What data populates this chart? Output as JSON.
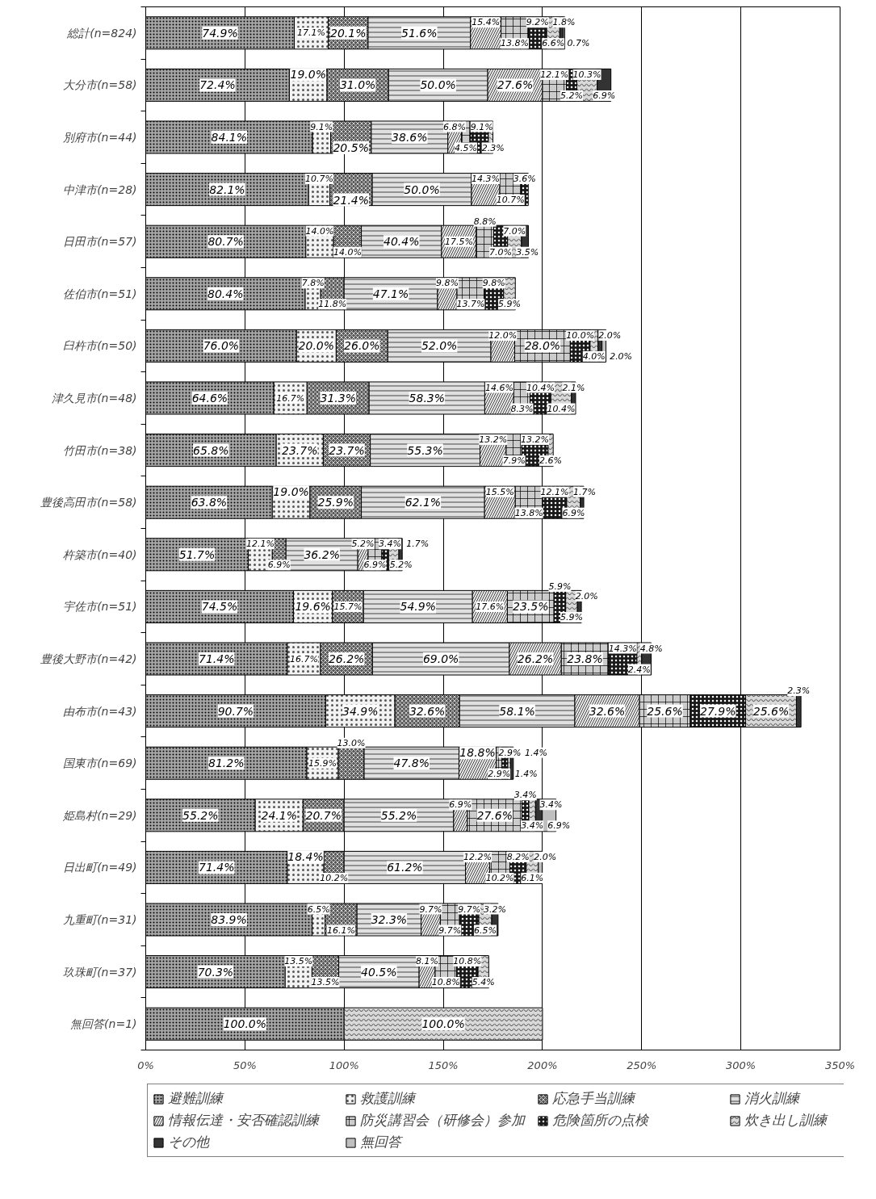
{
  "chart_data": {
    "type": "bar",
    "orientation": "horizontal",
    "stacked": true,
    "categories": [
      "総計(n=824)",
      "大分市(n=58)",
      "別府市(n=44)",
      "中津市(n=28)",
      "日田市(n=57)",
      "佐伯市(n=51)",
      "臼杵市(n=50)",
      "津久見市(n=48)",
      "竹田市(n=38)",
      "豊後高田市(n=58)",
      "杵築市(n=40)",
      "宇佐市(n=51)",
      "豊後大野市(n=42)",
      "由布市(n=43)",
      "国東市(n=69)",
      "姫島村(n=29)",
      "日出町(n=49)",
      "九重町(n=31)",
      "玖珠町(n=37)",
      "無回答(n=1)"
    ],
    "xlim": [
      0,
      350
    ],
    "xticks": [
      {
        "value": 0,
        "label": "0%"
      },
      {
        "value": 50,
        "label": "50%"
      },
      {
        "value": 100,
        "label": "100%"
      },
      {
        "value": 150,
        "label": "150%"
      },
      {
        "value": 200,
        "label": "200%"
      },
      {
        "value": 250,
        "label": "250%"
      },
      {
        "value": 300,
        "label": "300%"
      },
      {
        "value": 350,
        "label": "350%"
      }
    ],
    "grid": "x",
    "legend": "bottom",
    "series": [
      {
        "name": "避難訓練",
        "color": "#a6a6a6",
        "values": [
          74.9,
          72.4,
          84.1,
          82.1,
          80.7,
          80.4,
          76.0,
          64.6,
          65.8,
          63.8,
          51.7,
          74.5,
          71.4,
          90.7,
          81.2,
          55.2,
          71.4,
          83.9,
          70.3,
          100.0
        ],
        "value_labels": [
          "74.9%",
          "72.4%",
          "84.1%",
          "82.1%",
          "80.7%",
          "80.4%",
          "76.0%",
          "64.6%",
          "65.8%",
          "63.8%",
          "51.7%",
          "74.5%",
          "71.4%",
          "90.7%",
          "81.2%",
          "55.2%",
          "71.4%",
          "83.9%",
          "70.3%",
          "100.0%"
        ]
      },
      {
        "name": "救護訓練",
        "color": "#f2f2f2",
        "values": [
          17.1,
          19.0,
          9.1,
          10.7,
          14.0,
          7.8,
          20.0,
          16.7,
          23.7,
          19.0,
          12.1,
          19.6,
          16.7,
          34.9,
          15.9,
          24.1,
          18.4,
          6.5,
          13.5,
          null
        ],
        "value_labels": [
          "17.1%",
          "19.0%",
          "9.1%",
          "10.7%",
          "14.0%",
          "7.8%",
          "20.0%",
          "16.7%",
          "23.7%",
          "19.0%",
          "12.1%",
          "19.6%",
          "16.7%",
          "34.9%",
          "15.9%",
          "24.1%",
          "18.4%",
          "6.5%",
          "13.5%",
          null
        ]
      },
      {
        "name": "応急手当訓練",
        "color": "#595959",
        "values": [
          20.1,
          31.0,
          20.5,
          21.4,
          14.0,
          11.8,
          26.0,
          31.3,
          23.7,
          25.9,
          6.9,
          15.7,
          26.2,
          32.6,
          13.0,
          20.7,
          10.2,
          16.1,
          13.5,
          null
        ],
        "value_labels": [
          "20.1%",
          "31.0%",
          "20.5%",
          "21.4%",
          "14.0%",
          "11.8%",
          "26.0%",
          "31.3%",
          "23.7%",
          "25.9%",
          "6.9%",
          "15.7%",
          "26.2%",
          "32.6%",
          "13.0%",
          "20.7%",
          "10.2%",
          "16.1%",
          "13.5%",
          null
        ]
      },
      {
        "name": "消火訓練",
        "color": "#e0e0e0",
        "values": [
          51.6,
          50.0,
          38.6,
          50.0,
          40.4,
          47.1,
          52.0,
          58.3,
          55.3,
          62.1,
          36.2,
          54.9,
          69.0,
          58.1,
          47.8,
          55.2,
          61.2,
          32.3,
          40.5,
          null
        ],
        "value_labels": [
          "51.6%",
          "50.0%",
          "38.6%",
          "50.0%",
          "40.4%",
          "47.1%",
          "52.0%",
          "58.3%",
          "55.3%",
          "62.1%",
          "36.2%",
          "54.9%",
          "69.0%",
          "58.1%",
          "47.8%",
          "55.2%",
          "61.2%",
          "32.3%",
          "40.5%",
          null
        ]
      },
      {
        "name": "情報伝達・安否確認訓練",
        "color": "#ebebeb",
        "values": [
          15.4,
          27.6,
          6.8,
          14.3,
          17.5,
          9.8,
          12.0,
          14.6,
          13.2,
          15.5,
          5.2,
          17.6,
          26.2,
          32.6,
          18.8,
          6.9,
          12.2,
          9.7,
          8.1,
          null
        ],
        "value_labels": [
          "15.4%",
          "27.6%",
          "6.8%",
          "14.3%",
          "17.5%",
          "9.8%",
          "12.0%",
          "14.6%",
          "13.2%",
          "15.5%",
          "5.2%",
          "17.6%",
          "26.2%",
          "32.6%",
          "18.8%",
          "6.9%",
          "12.2%",
          "9.7%",
          "8.1%",
          null
        ]
      },
      {
        "name": "防災講習会（研修会）参加",
        "color": "#cccccc",
        "values": [
          13.8,
          12.1,
          4.5,
          10.7,
          8.8,
          13.7,
          28.0,
          8.3,
          7.9,
          13.8,
          6.9,
          23.5,
          23.8,
          25.6,
          2.9,
          27.6,
          10.2,
          9.7,
          10.8,
          null
        ],
        "value_labels": [
          "13.8%",
          "12.1%",
          "4.5%",
          "10.7%",
          "8.8%",
          "13.7%",
          "28.0%",
          "8.3%",
          "7.9%",
          "13.8%",
          "6.9%",
          "23.5%",
          "23.8%",
          "25.6%",
          "2.9%",
          "27.6%",
          "10.2%",
          "9.7%",
          "10.8%",
          null
        ]
      },
      {
        "name": "危険箇所の点検",
        "color": "#1a1a1a",
        "values": [
          9.2,
          5.2,
          9.1,
          3.6,
          7.0,
          9.8,
          10.0,
          10.4,
          13.2,
          12.1,
          3.4,
          5.9,
          14.3,
          27.9,
          2.9,
          3.4,
          8.2,
          9.7,
          10.8,
          null
        ],
        "value_labels": [
          "9.2%",
          "5.2%",
          "9.1%",
          "3.6%",
          "7.0%",
          "9.8%",
          "10.0%",
          "10.4%",
          "13.2%",
          "12.1%",
          "3.4%",
          "5.9%",
          "14.3%",
          "27.9%",
          "2.9%",
          "3.4%",
          "8.2%",
          "9.7%",
          "10.8%",
          null
        ]
      },
      {
        "name": "炊き出し訓練",
        "color": "#d9d9d9",
        "values": [
          6.6,
          10.3,
          2.3,
          null,
          7.0,
          5.9,
          4.0,
          10.4,
          2.6,
          6.9,
          5.2,
          5.9,
          2.4,
          25.6,
          1.4,
          3.4,
          6.1,
          6.5,
          5.4,
          100.0
        ],
        "value_labels": [
          "6.6%",
          "10.3%",
          "2.3%",
          null,
          "7.0%",
          "5.9%",
          "4.0%",
          "10.4%",
          "2.6%",
          "6.9%",
          "5.2%",
          "5.9%",
          "2.4%",
          "25.6%",
          "1.4%",
          "3.4%",
          "6.1%",
          "6.5%",
          "5.4%",
          "100.0%"
        ]
      },
      {
        "name": "その他",
        "color": "#333333",
        "values": [
          1.8,
          6.9,
          null,
          null,
          3.5,
          null,
          2.0,
          2.1,
          null,
          1.7,
          1.7,
          2.0,
          4.8,
          2.3,
          1.4,
          3.4,
          null,
          3.2,
          null,
          null
        ],
        "value_labels": [
          "1.8%",
          "6.9%",
          null,
          null,
          "3.5%",
          null,
          "2.0%",
          "2.1%",
          null,
          "1.7%",
          "1.7%",
          "2.0%",
          "4.8%",
          "2.3%",
          "1.4%",
          "3.4%",
          null,
          "3.2%",
          null,
          null
        ]
      },
      {
        "name": "無回答",
        "color": "#bfbfbf",
        "values": [
          0.7,
          null,
          null,
          null,
          null,
          null,
          2.0,
          null,
          null,
          null,
          null,
          null,
          null,
          null,
          null,
          6.9,
          2.0,
          null,
          null,
          null
        ],
        "value_labels": [
          "0.7%",
          null,
          null,
          null,
          null,
          null,
          "2.0%",
          null,
          null,
          null,
          null,
          null,
          null,
          null,
          null,
          "6.9%",
          "2.0%",
          null,
          null,
          null
        ]
      }
    ]
  }
}
